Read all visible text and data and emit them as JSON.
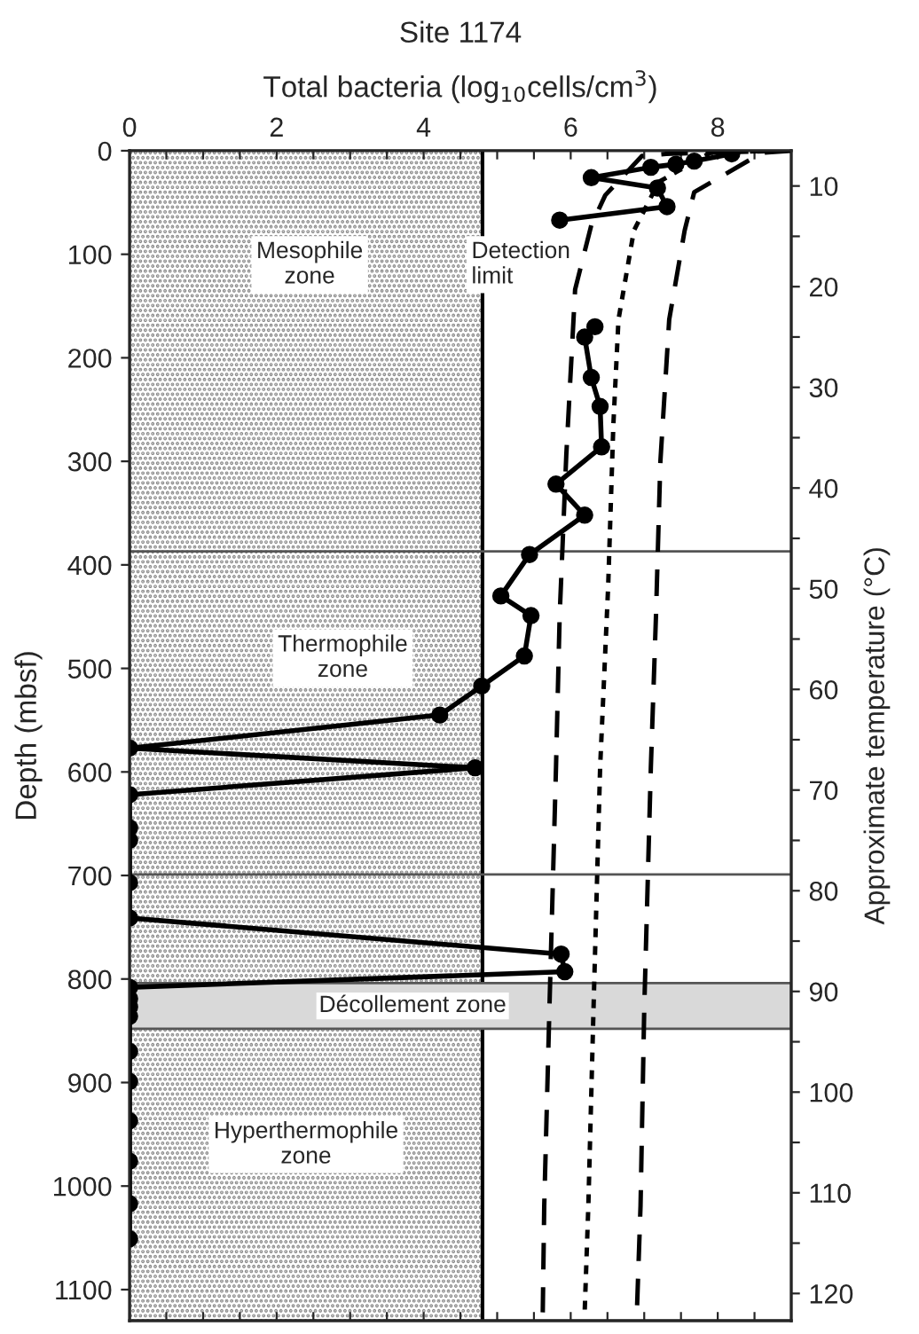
{
  "chart_data": {
    "type": "line",
    "title": "Site 1174",
    "xlabel": "Total bacteria (log$_{10}$cells/cm$^{3}$)",
    "ylabel": "Depth (mbsf)",
    "y2label": "Approximate temperature (°C)",
    "xlim": [
      0,
      9
    ],
    "xticks": [
      0,
      {
        "value": 0.5,
        "label": null
      },
      {
        "value": 1,
        "label": null
      },
      {
        "value": 1.5,
        "label": null
      },
      2,
      {
        "value": 2.5,
        "label": null
      },
      {
        "value": 3,
        "label": null
      },
      {
        "value": 3.5,
        "label": null
      },
      4,
      {
        "value": 4.5,
        "label": null
      },
      {
        "value": 5,
        "label": null
      },
      {
        "value": 5.5,
        "label": null
      },
      6,
      {
        "value": 6.5,
        "label": null
      },
      {
        "value": 7,
        "label": null
      },
      {
        "value": 7.5,
        "label": null
      },
      8,
      {
        "value": 8.5,
        "label": null
      }
    ],
    "ylim": [
      1130,
      0
    ],
    "yticks": [
      0,
      100,
      200,
      300,
      400,
      500,
      600,
      700,
      800,
      900,
      1000,
      1100
    ],
    "y2lim": [
      122.7,
      6.5
    ],
    "y2ticks": [
      10,
      {
        "value": 15,
        "label": null
      },
      20,
      {
        "value": 25,
        "label": null
      },
      30,
      {
        "value": 35,
        "label": null
      },
      40,
      {
        "value": 45,
        "label": null
      },
      50,
      {
        "value": 55,
        "label": null
      },
      60,
      {
        "value": 65,
        "label": null
      },
      70,
      {
        "value": 75,
        "label": null
      },
      80,
      {
        "value": 85,
        "label": null
      },
      90,
      {
        "value": 95,
        "label": null
      },
      100,
      {
        "value": 105,
        "label": null
      },
      110,
      {
        "value": 115,
        "label": null
      },
      120
    ],
    "series": [
      {
        "color": "#000000",
        "marker": "circle",
        "line_style": "solid",
        "x": [
          8.19,
          7.68,
          7.43,
          7.09,
          6.28,
          7.18,
          7.31,
          5.85
        ],
        "values": [
          3,
          10,
          13,
          16,
          26,
          36,
          54,
          67
        ]
      },
      {
        "color": "#000000",
        "marker": "circle",
        "line_style": "solid",
        "x": [
          6.33,
          6.19,
          6.28,
          6.4,
          6.42,
          5.8,
          6.19,
          5.44,
          5.05,
          5.46,
          5.37,
          4.79,
          4.22,
          0,
          4.7,
          0,
          0,
          0,
          0,
          0,
          5.87,
          5.92,
          0,
          0,
          0,
          0,
          0,
          0,
          0,
          0,
          0,
          0
        ],
        "values": [
          170,
          180,
          219,
          247,
          286,
          322,
          352,
          390,
          430,
          449,
          488,
          517,
          545,
          577,
          596,
          622,
          654,
          666,
          707,
          741,
          776,
          793,
          808,
          819,
          827,
          836,
          870,
          899,
          937,
          976,
          1017,
          1051
        ]
      },
      {
        "color": "#000000",
        "marker": "none",
        "line_style": "dashed",
        "x": [
          8.8,
          7.3,
          6.97,
          6.47,
          6.28,
          6.06,
          5.94,
          5.85,
          5.8,
          5.71,
          5.64,
          5.62
        ],
        "values": [
          0,
          3,
          5,
          43,
          72,
          134,
          294,
          449,
          596,
          830,
          1019,
          1122
        ]
      },
      {
        "color": "#000000",
        "marker": "none",
        "line_style": "dotted",
        "x": [
          8.9,
          7.9,
          7.2,
          6.86,
          6.65,
          6.58,
          6.51,
          6.4,
          6.31,
          6.24,
          6.19
        ],
        "values": [
          0,
          2,
          30,
          77,
          163,
          265,
          420,
          596,
          830,
          1019,
          1122
        ]
      },
      {
        "color": "#000000",
        "marker": "none",
        "line_style": "dashed",
        "x": [
          9.0,
          8.6,
          7.68,
          7.55,
          7.34,
          7.22,
          7.16,
          7.09,
          7.0,
          6.95,
          6.9
        ],
        "values": [
          0,
          2,
          40,
          77,
          163,
          300,
          449,
          596,
          830,
          1019,
          1122
        ]
      }
    ],
    "bands": [
      {
        "axis": "x",
        "from": 0,
        "to": 4.8
      },
      {
        "axis": "y",
        "from": 804,
        "to": 848,
        "label": "Décollement zone",
        "color": "#d9d9d9"
      }
    ],
    "ref_lines": [
      {
        "axis": "x",
        "value": 4.8,
        "label": "Detection limit",
        "color": "#000000"
      },
      {
        "axis": "y",
        "value": 387,
        "color": "#555555"
      },
      {
        "axis": "y",
        "value": 699,
        "color": "#555555"
      }
    ],
    "annotations": [
      "Mesophile\nzone",
      "Thermophile\nzone",
      "Hyperthermophile\nzone"
    ],
    "grid": false,
    "legend": false
  }
}
